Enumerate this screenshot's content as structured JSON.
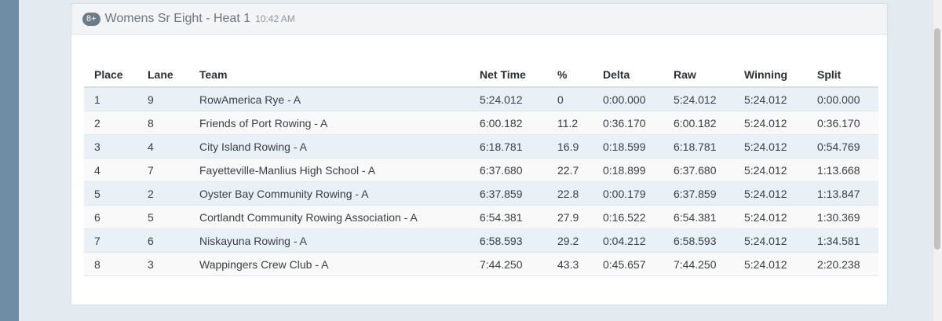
{
  "event": {
    "badge": "8+",
    "title": "Womens Sr Eight - Heat 1",
    "time": "10:42 AM"
  },
  "table": {
    "headers": [
      "Place",
      "Lane",
      "Team",
      "Net Time",
      "%",
      "Delta",
      "Raw",
      "Winning",
      "Split"
    ],
    "rows": [
      [
        "1",
        "9",
        "RowAmerica Rye - A",
        "5:24.012",
        "0",
        "0:00.000",
        "5:24.012",
        "5:24.012",
        "0:00.000"
      ],
      [
        "2",
        "8",
        "Friends of Port Rowing - A",
        "6:00.182",
        "11.2",
        "0:36.170",
        "6:00.182",
        "5:24.012",
        "0:36.170"
      ],
      [
        "3",
        "4",
        "City Island Rowing - A",
        "6:18.781",
        "16.9",
        "0:18.599",
        "6:18.781",
        "5:24.012",
        "0:54.769"
      ],
      [
        "4",
        "7",
        "Fayetteville-Manlius High School - A",
        "6:37.680",
        "22.7",
        "0:18.899",
        "6:37.680",
        "5:24.012",
        "1:13.668"
      ],
      [
        "5",
        "2",
        "Oyster Bay Community Rowing - A",
        "6:37.859",
        "22.8",
        "0:00.179",
        "6:37.859",
        "5:24.012",
        "1:13.847"
      ],
      [
        "6",
        "5",
        "Cortlandt Community Rowing Association - A",
        "6:54.381",
        "27.9",
        "0:16.522",
        "6:54.381",
        "5:24.012",
        "1:30.369"
      ],
      [
        "7",
        "6",
        "Niskayuna Rowing - A",
        "6:58.593",
        "29.2",
        "0:04.212",
        "6:58.593",
        "5:24.012",
        "1:34.581"
      ],
      [
        "8",
        "3",
        "Wappingers Crew Club - A",
        "7:44.250",
        "43.3",
        "0:45.657",
        "7:44.250",
        "5:24.012",
        "2:20.238"
      ]
    ]
  }
}
